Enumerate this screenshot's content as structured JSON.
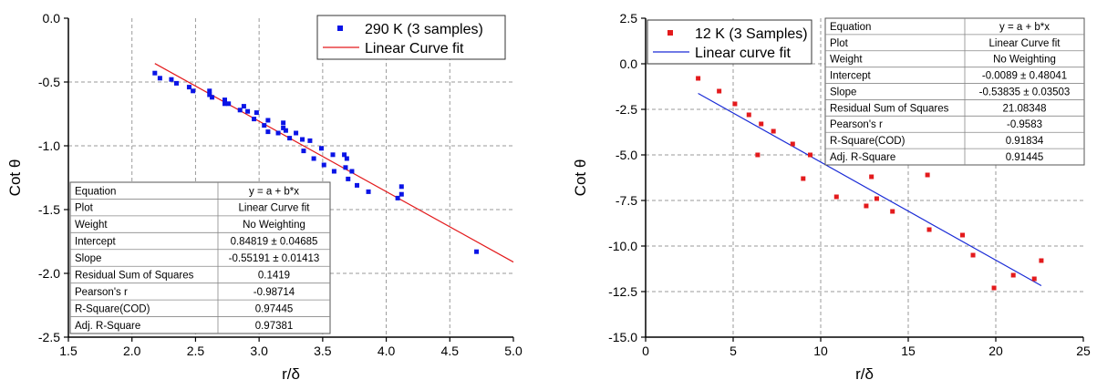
{
  "colors": {
    "series_left": "#0a14e6",
    "fit_left": "#e31a1c",
    "series_right": "#e31a1c",
    "fit_right": "#1a2bd6",
    "grid": "#9a9a9a",
    "axis": "#000000"
  },
  "table_headers": {
    "left": "Equation",
    "right": "y = a + b*x"
  },
  "chart_data": [
    {
      "type": "scatter",
      "title": "",
      "xlabel": "r/δ",
      "ylabel": "Cot θ",
      "xlim": [
        1.5,
        5.0
      ],
      "ylim": [
        -2.5,
        0.0
      ],
      "xticks": [
        "1.5",
        "2.0",
        "2.5",
        "3.0",
        "3.5",
        "4.0",
        "4.5",
        "5.0"
      ],
      "yticks": [
        "0.0",
        "-0.5",
        "-1.0",
        "-1.5",
        "-2.0",
        "-2.5"
      ],
      "grid": true,
      "legend_position": "top-right",
      "legend": [
        {
          "label": "290 K (3 samples)",
          "marker": "square",
          "color": "#0a14e6"
        },
        {
          "label": "Linear Curve fit",
          "marker": "line",
          "color": "#e31a1c"
        }
      ],
      "series": [
        {
          "name": "290 K (3 samples)",
          "x": [
            2.18,
            2.22,
            2.31,
            2.35,
            2.45,
            2.48,
            2.61,
            2.61,
            2.63,
            2.73,
            2.73,
            2.76,
            2.85,
            2.88,
            2.91,
            2.96,
            2.98,
            3.04,
            3.07,
            3.07,
            3.15,
            3.19,
            3.19,
            3.21,
            3.24,
            3.29,
            3.34,
            3.35,
            3.4,
            3.43,
            3.49,
            3.51,
            3.58,
            3.59,
            3.67,
            3.68,
            3.69,
            3.7,
            3.73,
            3.77,
            3.86,
            4.09,
            4.12,
            4.12,
            4.71
          ],
          "y": [
            -0.43,
            -0.47,
            -0.48,
            -0.51,
            -0.54,
            -0.57,
            -0.57,
            -0.6,
            -0.62,
            -0.64,
            -0.67,
            -0.67,
            -0.72,
            -0.69,
            -0.73,
            -0.79,
            -0.74,
            -0.84,
            -0.8,
            -0.89,
            -0.9,
            -0.82,
            -0.86,
            -0.88,
            -0.94,
            -0.9,
            -0.95,
            -1.04,
            -0.96,
            -1.1,
            -1.02,
            -1.15,
            -1.07,
            -1.2,
            -1.07,
            -1.17,
            -1.1,
            -1.26,
            -1.2,
            -1.31,
            -1.36,
            -1.41,
            -1.38,
            -1.32,
            -1.83
          ]
        },
        {
          "name": "Linear Curve fit",
          "type": "line",
          "x": [
            2.18,
            5.0
          ],
          "y": [
            -0.355,
            -1.911
          ]
        }
      ],
      "table": [
        {
          "label": "Plot",
          "value": "Linear Curve fit"
        },
        {
          "label": "Weight",
          "value": "No Weighting"
        },
        {
          "label": "Intercept",
          "value": "0.84819 ± 0.04685"
        },
        {
          "label": "Slope",
          "value": "-0.55191 ± 0.01413"
        },
        {
          "label": "Residual Sum of Squares",
          "value": "0.1419"
        },
        {
          "label": "Pearson's r",
          "value": "-0.98714"
        },
        {
          "label": "R-Square(COD)",
          "value": "0.97445"
        },
        {
          "label": "Adj. R-Square",
          "value": "0.97381"
        }
      ]
    },
    {
      "type": "scatter",
      "title": "",
      "xlabel": "r/δ",
      "ylabel": "Cot θ",
      "xlim": [
        0,
        25
      ],
      "ylim": [
        -15.0,
        2.5
      ],
      "xticks": [
        "0",
        "5",
        "10",
        "15",
        "20",
        "25"
      ],
      "yticks": [
        "2.5",
        "0.0",
        "-2.5",
        "-5.0",
        "-7.5",
        "-10.0",
        "-12.5",
        "-15.0"
      ],
      "grid": true,
      "legend_position": "top-left",
      "legend": [
        {
          "label": "12 K (3 Samples)",
          "marker": "square",
          "color": "#e31a1c"
        },
        {
          "label": "Linear curve fit",
          "marker": "line",
          "color": "#1a2bd6"
        }
      ],
      "series": [
        {
          "name": "12 K (3 Samples)",
          "x": [
            3.0,
            4.2,
            5.1,
            5.9,
            6.4,
            6.6,
            7.3,
            8.4,
            9.0,
            9.4,
            10.9,
            12.6,
            12.9,
            13.2,
            14.1,
            16.1,
            16.2,
            18.1,
            18.7,
            19.9,
            21.0,
            22.2,
            22.6
          ],
          "y": [
            -0.8,
            -1.5,
            -2.2,
            -2.8,
            -5.0,
            -3.3,
            -3.7,
            -4.4,
            -6.3,
            -5.0,
            -7.3,
            -7.8,
            -6.2,
            -7.4,
            -8.1,
            -6.1,
            -9.1,
            -9.4,
            -10.5,
            -12.3,
            -11.6,
            -11.8,
            -10.8
          ]
        },
        {
          "name": "Linear curve fit",
          "type": "line",
          "x": [
            3.0,
            22.6
          ],
          "y": [
            -1.624,
            -12.175
          ]
        }
      ],
      "table": [
        {
          "label": "Plot",
          "value": "Linear Curve fit"
        },
        {
          "label": "Weight",
          "value": "No Weighting"
        },
        {
          "label": "Intercept",
          "value": "-0.0089 ± 0.48041"
        },
        {
          "label": "Slope",
          "value": "-0.53835 ± 0.03503"
        },
        {
          "label": "Residual Sum of Squares",
          "value": "21.08348"
        },
        {
          "label": "Pearson's r",
          "value": "-0.9583"
        },
        {
          "label": "R-Square(COD)",
          "value": "0.91834"
        },
        {
          "label": "Adj. R-Square",
          "value": "0.91445"
        }
      ]
    }
  ]
}
